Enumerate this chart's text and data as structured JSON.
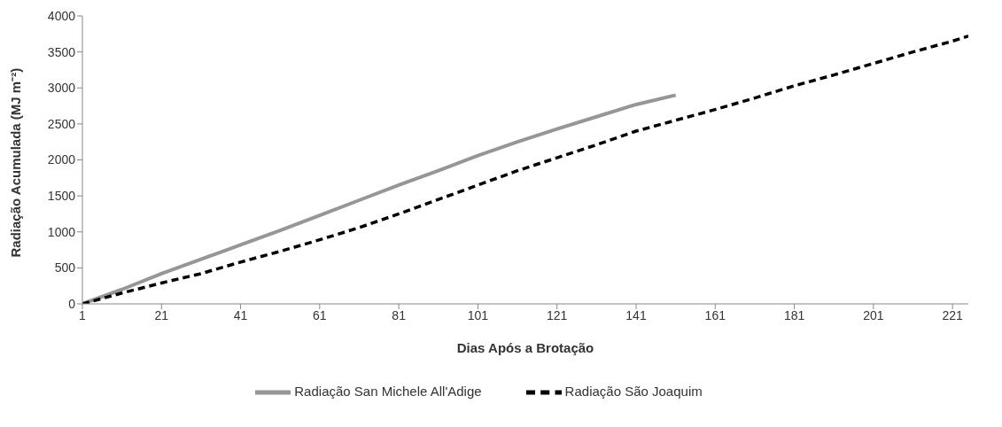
{
  "chart_data": {
    "type": "line",
    "xlabel": "Dias Após a Brotação",
    "ylabel": "Radiação Acumulada (MJ m⁻²)",
    "xlim": [
      1,
      225
    ],
    "xticks": [
      1,
      21,
      41,
      61,
      81,
      101,
      121,
      141,
      161,
      181,
      201,
      221
    ],
    "ylim": [
      0,
      4000
    ],
    "yticks": [
      0,
      500,
      1000,
      1500,
      2000,
      2500,
      3000,
      3500,
      4000
    ],
    "grid": false,
    "legend": "bottom",
    "marker": "none",
    "series": [
      {
        "name": "Radiação San Michele All'Adige",
        "color": "#969696",
        "line_style": "solid",
        "x": [
          1,
          11,
          21,
          31,
          41,
          51,
          61,
          71,
          81,
          91,
          101,
          111,
          121,
          131,
          141,
          151
        ],
        "values": [
          0,
          200,
          420,
          620,
          820,
          1020,
          1230,
          1440,
          1650,
          1850,
          2060,
          2250,
          2430,
          2600,
          2770,
          2900
        ]
      },
      {
        "name": "Radiação São Joaquim",
        "color": "#000000",
        "line_style": "dashed",
        "x": [
          1,
          11,
          21,
          31,
          41,
          51,
          61,
          71,
          81,
          91,
          101,
          111,
          121,
          131,
          141,
          151,
          161,
          171,
          181,
          191,
          201,
          211,
          221,
          225
        ],
        "values": [
          0,
          150,
          290,
          420,
          580,
          730,
          890,
          1060,
          1250,
          1450,
          1650,
          1850,
          2030,
          2210,
          2400,
          2550,
          2700,
          2860,
          3030,
          3180,
          3340,
          3500,
          3650,
          3720
        ]
      }
    ]
  }
}
